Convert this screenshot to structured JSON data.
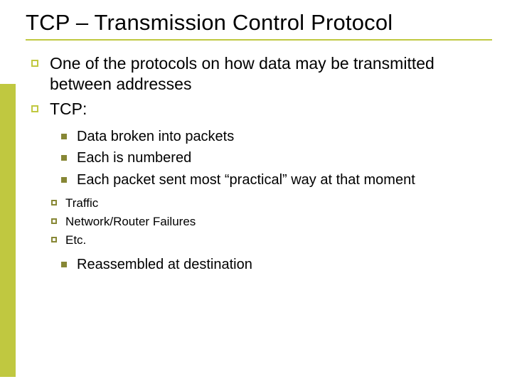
{
  "colors": {
    "accent": "#c0c840",
    "bullet_fill": "#878735",
    "text": "#000000",
    "background": "#ffffff"
  },
  "typography": {
    "title_fontsize_pt": 31,
    "lvl1_fontsize_pt": 23,
    "lvl2_fontsize_pt": 20,
    "lvl3_fontsize_pt": 17,
    "font_family": "Verdana"
  },
  "title": "TCP – Transmission Control Protocol",
  "bullets": {
    "lvl1": [
      "One of the protocols on how data may be transmitted between addresses",
      "TCP:"
    ],
    "lvl2_a": [
      "Data broken into packets",
      "Each is numbered",
      "Each packet sent most “practical” way at that moment"
    ],
    "lvl3": [
      "Traffic",
      "Network/Router Failures",
      "Etc."
    ],
    "lvl2_b": [
      "Reassembled at destination"
    ]
  }
}
